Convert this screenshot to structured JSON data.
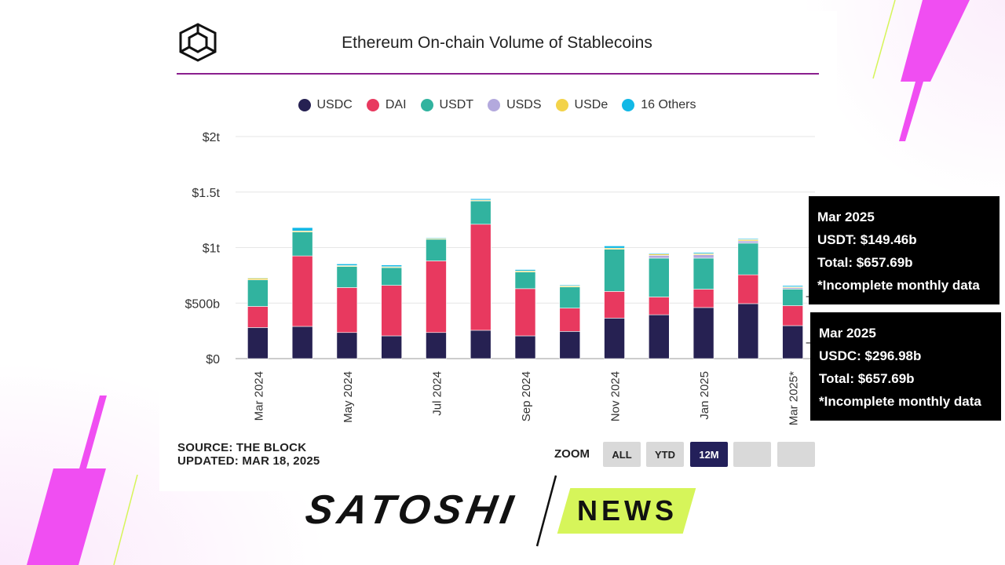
{
  "header": {
    "title": "Ethereum On-chain Volume of Stablecoins",
    "logo_icon": "the-block-cube-icon"
  },
  "colors": {
    "USDC": "#262152",
    "DAI": "#e8395f",
    "USDT": "#31b39f",
    "USDS": "#b3a9dd",
    "USDe": "#f3d34a",
    "16 Others": "#12b8e6",
    "accent": "#8a1f8e",
    "magenta": "#f04ef2",
    "lime": "#d6f55a"
  },
  "legend": [
    {
      "label": "USDC",
      "color": "#262152"
    },
    {
      "label": "DAI",
      "color": "#e8395f"
    },
    {
      "label": "USDT",
      "color": "#31b39f"
    },
    {
      "label": "USDS",
      "color": "#b3a9dd"
    },
    {
      "label": "USDe",
      "color": "#f3d34a"
    },
    {
      "label": "16 Others",
      "color": "#12b8e6"
    }
  ],
  "chart_data": {
    "type": "bar",
    "stacked": true,
    "title": "Ethereum On-chain Volume of Stablecoins",
    "categories": [
      "Mar 2024",
      "Apr 2024",
      "May 2024",
      "Jun 2024",
      "Jul 2024",
      "Aug 2024",
      "Sep 2024",
      "Oct 2024",
      "Nov 2024",
      "Dec 2024",
      "Jan 2025",
      "Feb 2025",
      "Mar 2025*"
    ],
    "x_tick_labels": [
      "Mar 2024",
      "May 2024",
      "Jul 2024",
      "Sep 2024",
      "Nov 2024",
      "Jan 2025",
      "Mar 2025*"
    ],
    "y_ticks": [
      "$0",
      "$500b",
      "$1t",
      "$1.5t",
      "$2t"
    ],
    "y_tick_values": [
      0,
      500,
      1000,
      1500,
      2000
    ],
    "ylim": [
      0,
      2000
    ],
    "unit": "billions USD",
    "grid": true,
    "legend_position": "top-center",
    "series": [
      {
        "name": "USDC",
        "values": [
          280,
          290,
          235,
          205,
          235,
          255,
          205,
          245,
          365,
          395,
          460,
          495,
          296.98
        ]
      },
      {
        "name": "DAI",
        "values": [
          190,
          635,
          405,
          455,
          645,
          955,
          425,
          210,
          240,
          160,
          165,
          260,
          180
        ]
      },
      {
        "name": "USDT",
        "values": [
          240,
          215,
          190,
          160,
          195,
          210,
          150,
          190,
          380,
          350,
          280,
          285,
          149.46
        ]
      },
      {
        "name": "USDS",
        "values": [
          0,
          0,
          0,
          0,
          0,
          0,
          0,
          0,
          0,
          25,
          30,
          20,
          12
        ]
      },
      {
        "name": "USDe",
        "values": [
          15,
          10,
          8,
          8,
          8,
          8,
          10,
          10,
          10,
          12,
          10,
          12,
          8
        ]
      },
      {
        "name": "16 Others",
        "values": [
          5,
          30,
          15,
          15,
          7,
          12,
          12,
          8,
          20,
          8,
          10,
          8,
          11
        ]
      }
    ]
  },
  "tooltips": [
    {
      "month": "Mar 2025",
      "line": "USDT: $149.46b",
      "total": "Total: $657.69b",
      "note": "*Incomplete monthly data"
    },
    {
      "month": "Mar 2025",
      "line": "USDC: $296.98b",
      "total": "Total: $657.69b",
      "note": "*Incomplete monthly data"
    }
  ],
  "footer": {
    "source": "SOURCE: THE BLOCK",
    "updated": "UPDATED: MAR 18, 2025"
  },
  "zoom": {
    "label": "ZOOM",
    "buttons": [
      {
        "label": "ALL",
        "active": false
      },
      {
        "label": "YTD",
        "active": false
      },
      {
        "label": "12M",
        "active": true
      },
      {
        "label": "",
        "active": false
      },
      {
        "label": "",
        "active": false
      }
    ]
  },
  "brand": {
    "name_part1": "SATOSHI",
    "name_part2": "NEWS"
  }
}
